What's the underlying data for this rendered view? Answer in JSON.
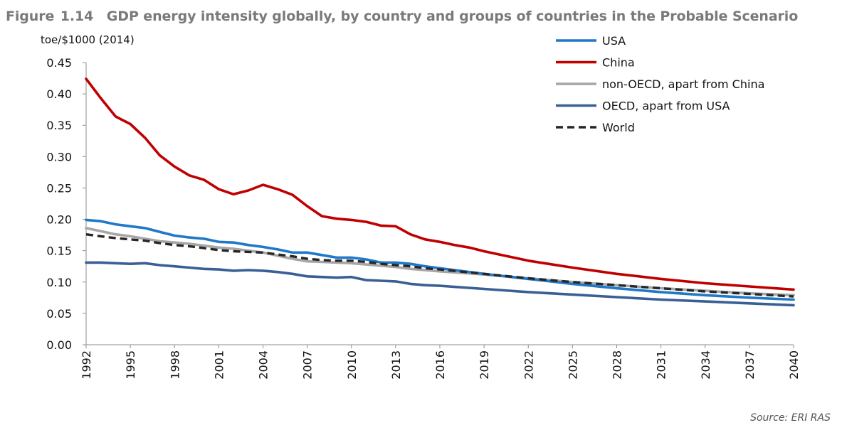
{
  "figure": {
    "label": "Figure",
    "number": "1.14",
    "title": "GDP energy intensity globally, by country and groups of countries in the Probable Scenario",
    "source": "Source: ERI RAS"
  },
  "colors": {
    "usa": "#1f78c8",
    "china": "#c00000",
    "non_oecd": "#a6a6a6",
    "oecd": "#3a5f96",
    "world": "#262626"
  },
  "chart_data": {
    "type": "line",
    "title": "GDP energy intensity globally, by country and groups of countries in the Probable Scenario",
    "ylabel": "toe/$1000 (2014)",
    "xlabel": "",
    "ylim": [
      0,
      0.45
    ],
    "yticks": [
      "0.00",
      "0.05",
      "0.10",
      "0.15",
      "0.20",
      "0.25",
      "0.30",
      "0.35",
      "0.40",
      "0.45"
    ],
    "xlim": [
      1992,
      2040
    ],
    "xticks": [
      "1992",
      "1995",
      "1998",
      "2001",
      "2004",
      "2007",
      "2010",
      "2013",
      "2016",
      "2019",
      "2022",
      "2025",
      "2028",
      "2031",
      "2034",
      "2037",
      "2040"
    ],
    "legend_position": "top-right",
    "grid": false,
    "series": [
      {
        "key": "usa",
        "name": "USA",
        "style": "solid",
        "points": [
          [
            1992,
            0.199
          ],
          [
            1993,
            0.197
          ],
          [
            1994,
            0.192
          ],
          [
            1995,
            0.189
          ],
          [
            1996,
            0.186
          ],
          [
            1997,
            0.18
          ],
          [
            1998,
            0.174
          ],
          [
            1999,
            0.171
          ],
          [
            2000,
            0.169
          ],
          [
            2001,
            0.164
          ],
          [
            2002,
            0.163
          ],
          [
            2003,
            0.159
          ],
          [
            2004,
            0.156
          ],
          [
            2005,
            0.152
          ],
          [
            2006,
            0.147
          ],
          [
            2007,
            0.147
          ],
          [
            2008,
            0.143
          ],
          [
            2009,
            0.139
          ],
          [
            2010,
            0.139
          ],
          [
            2011,
            0.136
          ],
          [
            2012,
            0.131
          ],
          [
            2013,
            0.131
          ],
          [
            2014,
            0.129
          ],
          [
            2015,
            0.125
          ],
          [
            2016,
            0.122
          ],
          [
            2019,
            0.113
          ],
          [
            2022,
            0.105
          ],
          [
            2025,
            0.097
          ],
          [
            2028,
            0.09
          ],
          [
            2031,
            0.084
          ],
          [
            2034,
            0.079
          ],
          [
            2037,
            0.075
          ],
          [
            2040,
            0.072
          ]
        ]
      },
      {
        "key": "china",
        "name": "China",
        "style": "solid",
        "points": [
          [
            1992,
            0.424
          ],
          [
            1993,
            0.393
          ],
          [
            1994,
            0.364
          ],
          [
            1995,
            0.352
          ],
          [
            1996,
            0.33
          ],
          [
            1997,
            0.302
          ],
          [
            1998,
            0.284
          ],
          [
            1999,
            0.27
          ],
          [
            2000,
            0.263
          ],
          [
            2001,
            0.248
          ],
          [
            2002,
            0.24
          ],
          [
            2003,
            0.246
          ],
          [
            2004,
            0.255
          ],
          [
            2005,
            0.248
          ],
          [
            2006,
            0.239
          ],
          [
            2007,
            0.221
          ],
          [
            2008,
            0.205
          ],
          [
            2009,
            0.201
          ],
          [
            2010,
            0.199
          ],
          [
            2011,
            0.196
          ],
          [
            2012,
            0.19
          ],
          [
            2013,
            0.189
          ],
          [
            2014,
            0.176
          ],
          [
            2015,
            0.168
          ],
          [
            2016,
            0.164
          ],
          [
            2017,
            0.159
          ],
          [
            2018,
            0.155
          ],
          [
            2019,
            0.149
          ],
          [
            2022,
            0.134
          ],
          [
            2025,
            0.123
          ],
          [
            2028,
            0.113
          ],
          [
            2031,
            0.105
          ],
          [
            2034,
            0.098
          ],
          [
            2037,
            0.093
          ],
          [
            2040,
            0.088
          ]
        ]
      },
      {
        "key": "non_oecd",
        "name": "non-OECD, apart from China",
        "style": "solid",
        "points": [
          [
            1992,
            0.186
          ],
          [
            1993,
            0.181
          ],
          [
            1994,
            0.176
          ],
          [
            1995,
            0.173
          ],
          [
            1996,
            0.169
          ],
          [
            1997,
            0.165
          ],
          [
            1998,
            0.163
          ],
          [
            1999,
            0.161
          ],
          [
            2000,
            0.158
          ],
          [
            2001,
            0.155
          ],
          [
            2002,
            0.153
          ],
          [
            2003,
            0.15
          ],
          [
            2004,
            0.147
          ],
          [
            2005,
            0.142
          ],
          [
            2006,
            0.137
          ],
          [
            2007,
            0.133
          ],
          [
            2008,
            0.132
          ],
          [
            2009,
            0.131
          ],
          [
            2010,
            0.13
          ],
          [
            2011,
            0.128
          ],
          [
            2012,
            0.126
          ],
          [
            2013,
            0.124
          ],
          [
            2014,
            0.121
          ],
          [
            2015,
            0.119
          ],
          [
            2016,
            0.117
          ],
          [
            2019,
            0.112
          ],
          [
            2022,
            0.106
          ],
          [
            2025,
            0.1
          ],
          [
            2028,
            0.095
          ],
          [
            2031,
            0.09
          ],
          [
            2034,
            0.086
          ],
          [
            2037,
            0.082
          ],
          [
            2040,
            0.079
          ]
        ]
      },
      {
        "key": "oecd",
        "name": "OECD, apart from USA",
        "style": "solid",
        "points": [
          [
            1992,
            0.131
          ],
          [
            1993,
            0.131
          ],
          [
            1994,
            0.13
          ],
          [
            1995,
            0.129
          ],
          [
            1996,
            0.13
          ],
          [
            1997,
            0.127
          ],
          [
            1998,
            0.125
          ],
          [
            1999,
            0.123
          ],
          [
            2000,
            0.121
          ],
          [
            2001,
            0.12
          ],
          [
            2002,
            0.118
          ],
          [
            2003,
            0.119
          ],
          [
            2004,
            0.118
          ],
          [
            2005,
            0.116
          ],
          [
            2006,
            0.113
          ],
          [
            2007,
            0.109
          ],
          [
            2008,
            0.108
          ],
          [
            2009,
            0.107
          ],
          [
            2010,
            0.108
          ],
          [
            2011,
            0.103
          ],
          [
            2012,
            0.102
          ],
          [
            2013,
            0.101
          ],
          [
            2014,
            0.097
          ],
          [
            2015,
            0.095
          ],
          [
            2016,
            0.094
          ],
          [
            2019,
            0.089
          ],
          [
            2022,
            0.084
          ],
          [
            2025,
            0.08
          ],
          [
            2028,
            0.076
          ],
          [
            2031,
            0.072
          ],
          [
            2034,
            0.069
          ],
          [
            2037,
            0.066
          ],
          [
            2040,
            0.063
          ]
        ]
      },
      {
        "key": "world",
        "name": "World",
        "style": "dashed",
        "points": [
          [
            1992,
            0.176
          ],
          [
            1993,
            0.173
          ],
          [
            1994,
            0.17
          ],
          [
            1995,
            0.168
          ],
          [
            1996,
            0.166
          ],
          [
            1997,
            0.162
          ],
          [
            1998,
            0.159
          ],
          [
            1999,
            0.157
          ],
          [
            2000,
            0.154
          ],
          [
            2001,
            0.151
          ],
          [
            2002,
            0.149
          ],
          [
            2003,
            0.148
          ],
          [
            2004,
            0.147
          ],
          [
            2005,
            0.144
          ],
          [
            2006,
            0.141
          ],
          [
            2007,
            0.137
          ],
          [
            2008,
            0.135
          ],
          [
            2009,
            0.134
          ],
          [
            2010,
            0.134
          ],
          [
            2011,
            0.132
          ],
          [
            2012,
            0.129
          ],
          [
            2013,
            0.127
          ],
          [
            2014,
            0.125
          ],
          [
            2015,
            0.122
          ],
          [
            2016,
            0.12
          ],
          [
            2019,
            0.113
          ],
          [
            2022,
            0.106
          ],
          [
            2025,
            0.1
          ],
          [
            2028,
            0.095
          ],
          [
            2031,
            0.09
          ],
          [
            2034,
            0.085
          ],
          [
            2037,
            0.081
          ],
          [
            2040,
            0.077
          ]
        ]
      }
    ]
  }
}
